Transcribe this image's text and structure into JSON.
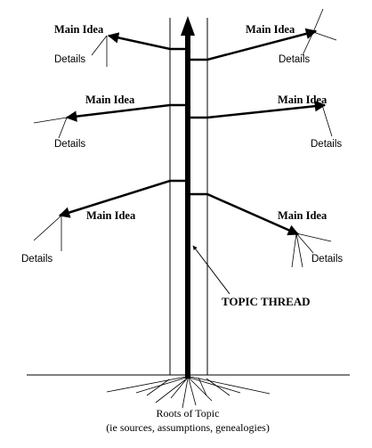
{
  "main_idea_label": "Main Idea",
  "details_label": "Details",
  "topic_thread_label": "TOPIC THREAD",
  "roots_label_line1": "Roots of Topic",
  "roots_label_line2": "(ie sources, assumptions, genealogies)"
}
